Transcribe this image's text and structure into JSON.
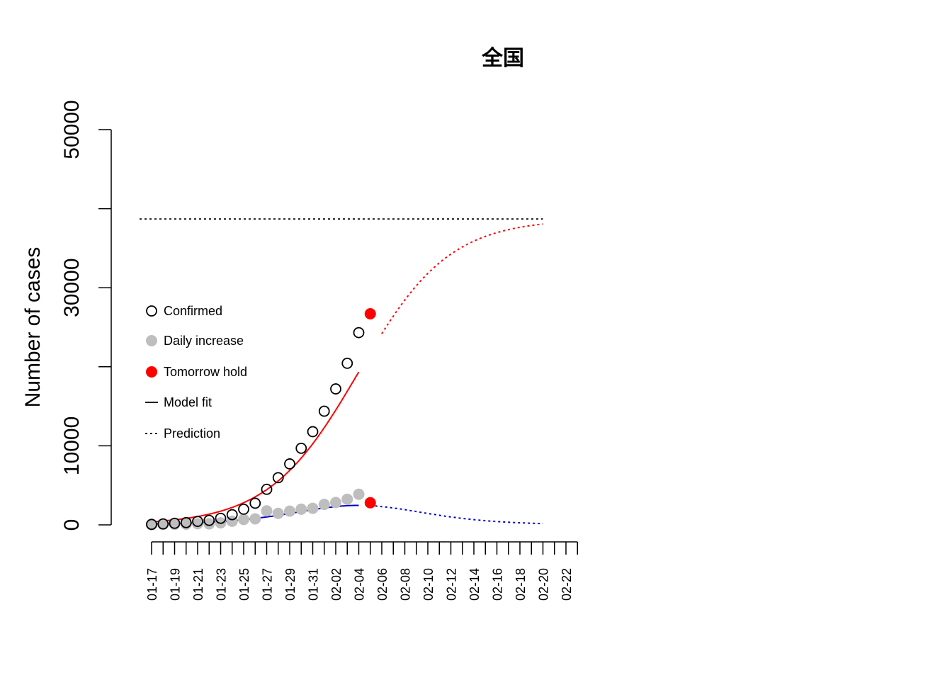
{
  "chart_data": {
    "type": "line",
    "title": "全国",
    "xlabel": "",
    "ylabel": "Number of cases",
    "ylim": [
      0,
      50000
    ],
    "y_ticks": [
      0,
      10000,
      20000,
      30000,
      40000,
      50000
    ],
    "y_tick_labels": [
      "0",
      "10000",
      "",
      "30000",
      "",
      "50000"
    ],
    "x_ticks": [
      "01-17",
      "01-18",
      "01-19",
      "01-20",
      "01-21",
      "01-22",
      "01-23",
      "01-24",
      "01-25",
      "01-26",
      "01-27",
      "01-28",
      "01-29",
      "01-30",
      "01-31",
      "02-01",
      "02-02",
      "02-03",
      "02-04",
      "02-05",
      "02-06",
      "02-07",
      "02-08",
      "02-09",
      "02-10",
      "02-11",
      "02-12",
      "02-13",
      "02-14",
      "02-15",
      "02-16",
      "02-17",
      "02-18",
      "02-19",
      "02-20",
      "02-21",
      "02-22",
      "02-23"
    ],
    "x_tick_labels": [
      "01-17",
      "01-19",
      "01-21",
      "01-23",
      "01-25",
      "01-27",
      "01-29",
      "01-31",
      "02-02",
      "02-04",
      "02-06",
      "02-08",
      "02-10",
      "02-12",
      "02-14",
      "02-16",
      "02-18",
      "02-20",
      "02-22"
    ],
    "dates": [
      "01-17",
      "01-18",
      "01-19",
      "01-20",
      "01-21",
      "01-22",
      "01-23",
      "01-24",
      "01-25",
      "01-26",
      "01-27",
      "01-28",
      "01-29",
      "01-30",
      "01-31",
      "02-01",
      "02-02",
      "02-03",
      "02-04"
    ],
    "series": [
      {
        "name": "Confirmed",
        "color": "#000000",
        "values": [
          60,
          120,
          200,
          290,
          440,
          570,
          830,
          1290,
          1980,
          2740,
          4500,
          5970,
          7710,
          9690,
          11790,
          14380,
          17200,
          20440,
          24320
        ]
      },
      {
        "name": "Daily increase",
        "color": "#bebebe",
        "values": [
          20,
          60,
          80,
          90,
          150,
          130,
          260,
          460,
          690,
          760,
          1770,
          1460,
          1740,
          1980,
          2100,
          2590,
          2830,
          3240,
          3880
        ]
      },
      {
        "name": "Tomorrow hold",
        "color": "#ff0000",
        "points": [
          {
            "x": "02-05",
            "y": 26700
          },
          {
            "x": "02-05",
            "y": 2800
          }
        ]
      }
    ],
    "model_fit": {
      "total": {
        "color": "#ff0000",
        "asymptote": 38700,
        "rate": 0.255,
        "midpoint_day": 18.0
      },
      "daily": {
        "color": "#0000cd"
      }
    },
    "reference_line": {
      "y": 38700,
      "style": "dotted",
      "color": "#000000"
    },
    "legend": {
      "placement": "left-middle",
      "entries": [
        "Confirmed",
        "Daily increase",
        "Tomorrow hold",
        "Model fit",
        "Prediction"
      ]
    },
    "grid": false
  }
}
